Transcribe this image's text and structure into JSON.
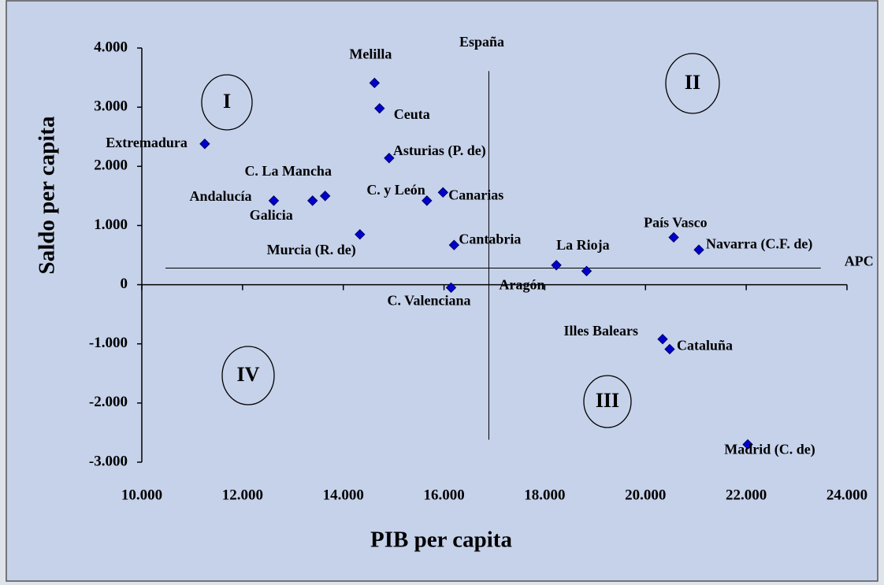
{
  "chart_data": {
    "type": "scatter",
    "xlabel": "PIB per capita",
    "ylabel": "Saldo per capita",
    "color": "#0000cc",
    "labels": [
      "Extremadura",
      "Andalucía",
      "Galicia",
      "C. La Mancha",
      "Murcia (R. de)",
      "C. y León",
      "Melilla",
      "Ceuta",
      "Asturias (P. de)",
      "Canarias",
      "Cantabria",
      "C. Valenciana",
      "Aragón",
      "La Rioja",
      "País Vasco",
      "Navarra (C.F. de)",
      "Illes Balears",
      "Cataluña",
      "Madrid (C. de)"
    ],
    "x": [
      11250,
      12620,
      13390,
      13640,
      14330,
      15660,
      14620,
      14720,
      14910,
      15980,
      16200,
      16140,
      18830,
      18230,
      20560,
      21060,
      20340,
      20480,
      22030
    ],
    "values": [
      2380,
      1420,
      1420,
      1500,
      850,
      1420,
      3410,
      2980,
      2140,
      1560,
      670,
      -50,
      230,
      330,
      800,
      590,
      -920,
      -1090,
      -2700
    ],
    "xlim": [
      10000,
      24000
    ],
    "ylim": [
      -3000,
      4000
    ],
    "xticks": [
      {
        "value": 10000,
        "label": "10.000"
      },
      {
        "value": 12000,
        "label": "12.000"
      },
      {
        "value": 14000,
        "label": "14.000"
      },
      {
        "value": 16000,
        "label": "16.000"
      },
      {
        "value": 18000,
        "label": "18.000"
      },
      {
        "value": 20000,
        "label": "20.000"
      },
      {
        "value": 22000,
        "label": "22.000"
      },
      {
        "value": 24000,
        "label": "24.000"
      }
    ],
    "yticks": [
      {
        "value": -3000,
        "label": "-3.000"
      },
      {
        "value": -2000,
        "label": "-2.000"
      },
      {
        "value": -1000,
        "label": "-1.000"
      },
      0,
      {
        "value": 1000,
        "label": "1.000"
      },
      {
        "value": 2000,
        "label": "2.000"
      },
      {
        "value": 3000,
        "label": "3.000"
      },
      {
        "value": 4000,
        "label": "4.000"
      }
    ],
    "reference_lines": [
      {
        "label": "España",
        "x": 16890,
        "y_range": [
          -2620,
          3610
        ]
      },
      {
        "label": "APC",
        "y": 280,
        "x_range": [
          10470,
          23480
        ]
      }
    ],
    "annotations": [
      "I",
      "II",
      "III",
      "IV"
    ]
  }
}
